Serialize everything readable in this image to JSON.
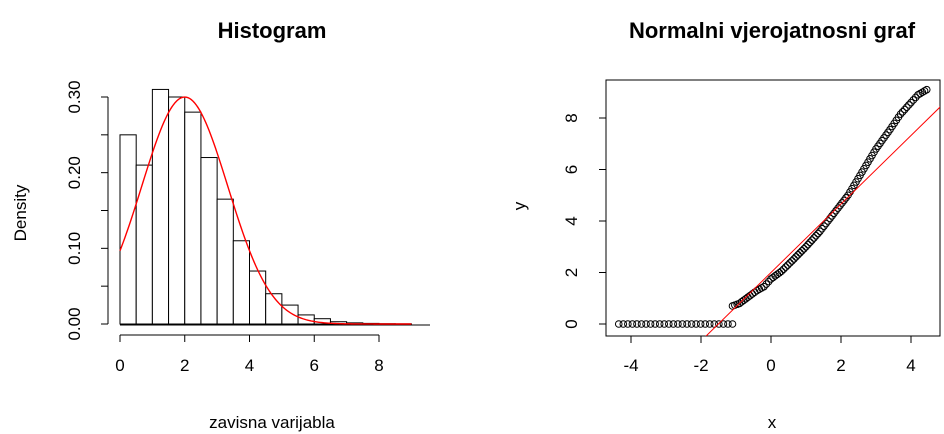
{
  "chart_data": [
    {
      "type": "bar",
      "title": "Histogram",
      "xlabel": "zavisna varijabla",
      "ylabel": "Density",
      "xlim": [
        0,
        9.5
      ],
      "ylim": [
        0,
        0.3
      ],
      "bin_width": 0.5,
      "bin_starts": [
        0,
        0.5,
        1,
        1.5,
        2,
        2.5,
        3,
        3.5,
        4,
        4.5,
        5,
        5.5,
        6,
        6.5,
        7,
        7.5,
        8,
        8.5
      ],
      "values": [
        0.25,
        0.21,
        0.31,
        0.3,
        0.28,
        0.22,
        0.165,
        0.11,
        0.07,
        0.04,
        0.025,
        0.012,
        0.007,
        0.003,
        0.0015,
        0.0008,
        0.0004,
        0.0002
      ],
      "xticks": [
        "0",
        "2",
        "4",
        "6",
        "8"
      ],
      "xtick_values": [
        0,
        2,
        4,
        6,
        8
      ],
      "yticks": [
        "0.00",
        "0.10",
        "0.20",
        "0.30"
      ],
      "ytick_values": [
        0,
        0.1,
        0.2,
        0.3
      ],
      "density_curve": {
        "color": "#ff0000",
        "x_range": [
          0,
          9
        ],
        "mean": 2.0,
        "sd": 1.33
      },
      "bar_fill": "#ffffff",
      "bar_stroke": "#000000"
    },
    {
      "type": "scatter",
      "title": "Normalni vjerojatnosni graf",
      "xlabel": "x",
      "ylabel": "y",
      "xlim": [
        -4.5,
        4.8
      ],
      "ylim": [
        -0.4,
        9.3
      ],
      "xticks": [
        "-4",
        "-2",
        "0",
        "2",
        "4"
      ],
      "xtick_values": [
        -4,
        -2,
        0,
        2,
        4
      ],
      "yticks": [
        "0",
        "2",
        "4",
        "6",
        "8"
      ],
      "ytick_values": [
        0,
        2,
        4,
        6,
        8
      ],
      "points_summary": {
        "zero_cluster_x_range": [
          -4.35,
          -1.1
        ],
        "zero_cluster_y": 0,
        "curve_points": [
          [
            -1.1,
            0.7
          ],
          [
            -0.9,
            0.8
          ],
          [
            -0.6,
            1.1
          ],
          [
            -0.4,
            1.3
          ],
          [
            -0.2,
            1.45
          ],
          [
            0,
            1.75
          ],
          [
            0.3,
            2.05
          ],
          [
            0.6,
            2.45
          ],
          [
            1.0,
            3.0
          ],
          [
            1.4,
            3.6
          ],
          [
            1.8,
            4.3
          ],
          [
            2.2,
            5.0
          ],
          [
            2.6,
            5.9
          ],
          [
            3.0,
            6.8
          ],
          [
            3.4,
            7.55
          ],
          [
            3.7,
            8.15
          ],
          [
            4.0,
            8.6
          ],
          [
            4.2,
            8.9
          ],
          [
            4.45,
            9.1
          ]
        ]
      },
      "reference_line": {
        "color": "#ff0000",
        "intercept": 2.0,
        "slope": 1.33
      },
      "point_style": "open-circle"
    }
  ]
}
